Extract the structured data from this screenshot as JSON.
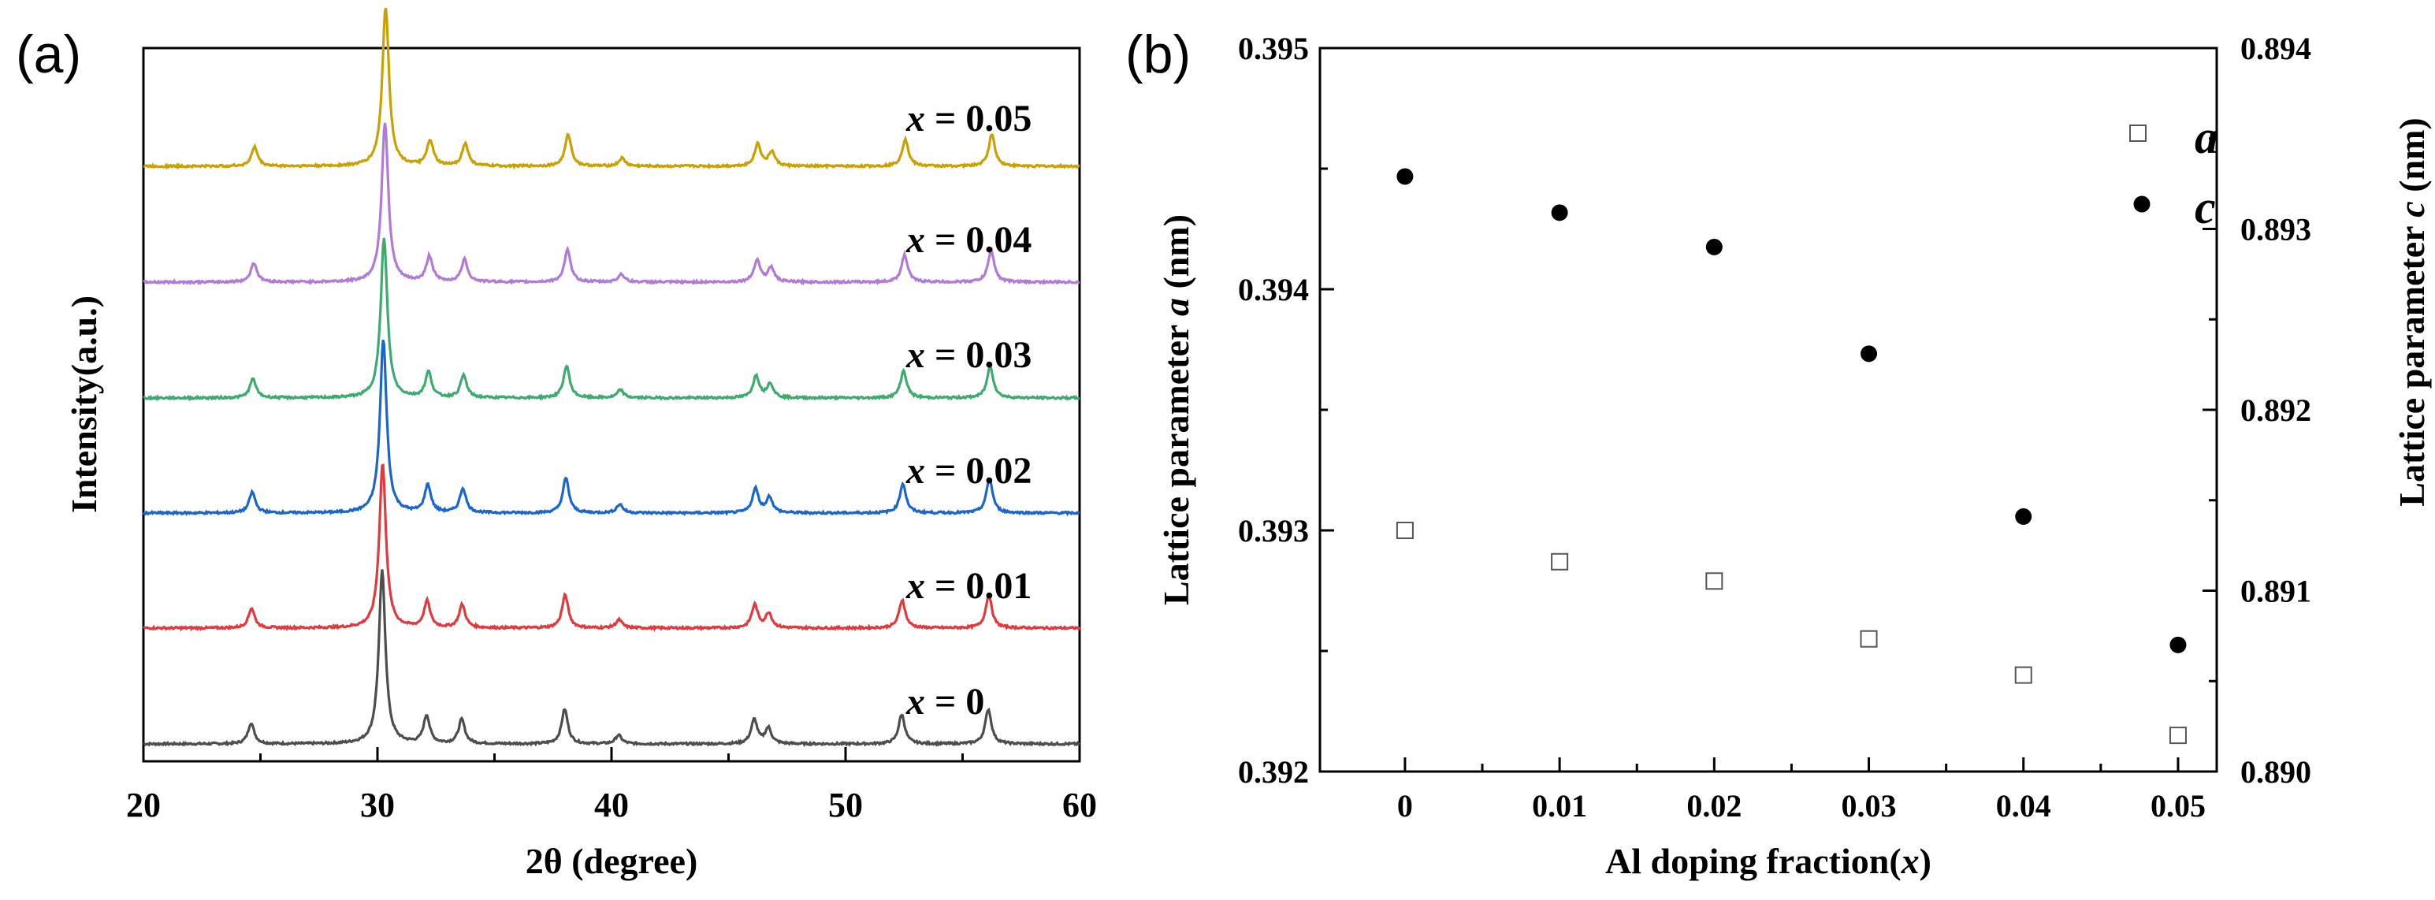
{
  "chart_data": [
    {
      "panel_label": "(a)",
      "type": "line",
      "title": "",
      "xlabel": "2θ (degree)",
      "ylabel": "Intensity(a.u.)",
      "xlim": [
        20,
        60
      ],
      "xticks": [
        "20",
        "30",
        "40",
        "50",
        "60"
      ],
      "yticks": [],
      "grid": false,
      "peaks_2theta": [
        24.6,
        30.2,
        32.1,
        33.6,
        38.0,
        40.3,
        46.1,
        46.7,
        52.4,
        56.1
      ],
      "peak_relative_heights": [
        0.12,
        1.0,
        0.16,
        0.14,
        0.2,
        0.05,
        0.14,
        0.09,
        0.17,
        0.2
      ],
      "series": [
        {
          "name": "x = 0",
          "label_var": "x",
          "label_value": "= 0",
          "color": "#4d4d4d",
          "shift": 0.0,
          "peak_scale": 1.0
        },
        {
          "name": "x = 0.01",
          "label_var": "x",
          "label_value": "= 0.01",
          "color": "#e0393e",
          "shift": 0.02,
          "peak_scale": 0.95
        },
        {
          "name": "x = 0.02",
          "label_var": "x",
          "label_value": "= 0.02",
          "color": "#1a66cc",
          "shift": 0.05,
          "peak_scale": 1.0
        },
        {
          "name": "x = 0.03",
          "label_var": "x",
          "label_value": "= 0.03",
          "color": "#3daa6e",
          "shift": 0.08,
          "peak_scale": 0.92
        },
        {
          "name": "x = 0.04",
          "label_var": "x",
          "label_value": "= 0.04",
          "color": "#b07ad6",
          "shift": 0.12,
          "peak_scale": 0.92
        },
        {
          "name": "x = 0.05",
          "label_var": "x",
          "label_value": "= 0.05",
          "color": "#c9a100",
          "shift": 0.15,
          "peak_scale": 0.92
        }
      ]
    },
    {
      "panel_label": "(b)",
      "type": "scatter",
      "title": "",
      "xlabel_text": "Al doping fraction(",
      "xlabel_var": "x",
      "xlabel_end": ")",
      "ylabel_left_text": "Lattice parameter",
      "ylabel_left_var": "a",
      "ylabel_left_unit": "(nm)",
      "ylabel_right_text": "Lattice parameter",
      "ylabel_right_var": "c",
      "ylabel_right_unit": "(nm)",
      "categories": [
        "0",
        "0.01",
        "0.02",
        "0.03",
        "0.04",
        "0.05"
      ],
      "x": [
        0,
        0.01,
        0.02,
        0.03,
        0.04,
        0.05
      ],
      "xlim": [
        -0.0055,
        0.0525
      ],
      "ylim_left": [
        0.392,
        0.395
      ],
      "yticks_left": [
        "0.392",
        "0.393",
        "0.394",
        "0.395"
      ],
      "ylim_right": [
        0.89,
        0.894
      ],
      "yticks_right": [
        "0.890",
        "0.891",
        "0.892",
        "0.893",
        "0.894"
      ],
      "grid": false,
      "legend_position": "top-right",
      "series": [
        {
          "name": "a",
          "axis": "left",
          "marker": "open-square",
          "values": [
            0.393,
            0.39287,
            0.39279,
            0.39255,
            0.3924,
            0.39215
          ]
        },
        {
          "name": "c",
          "axis": "right",
          "marker": "filled-circle",
          "values": [
            0.89329,
            0.89309,
            0.8929,
            0.89231,
            0.89141,
            0.8907
          ]
        }
      ]
    }
  ]
}
